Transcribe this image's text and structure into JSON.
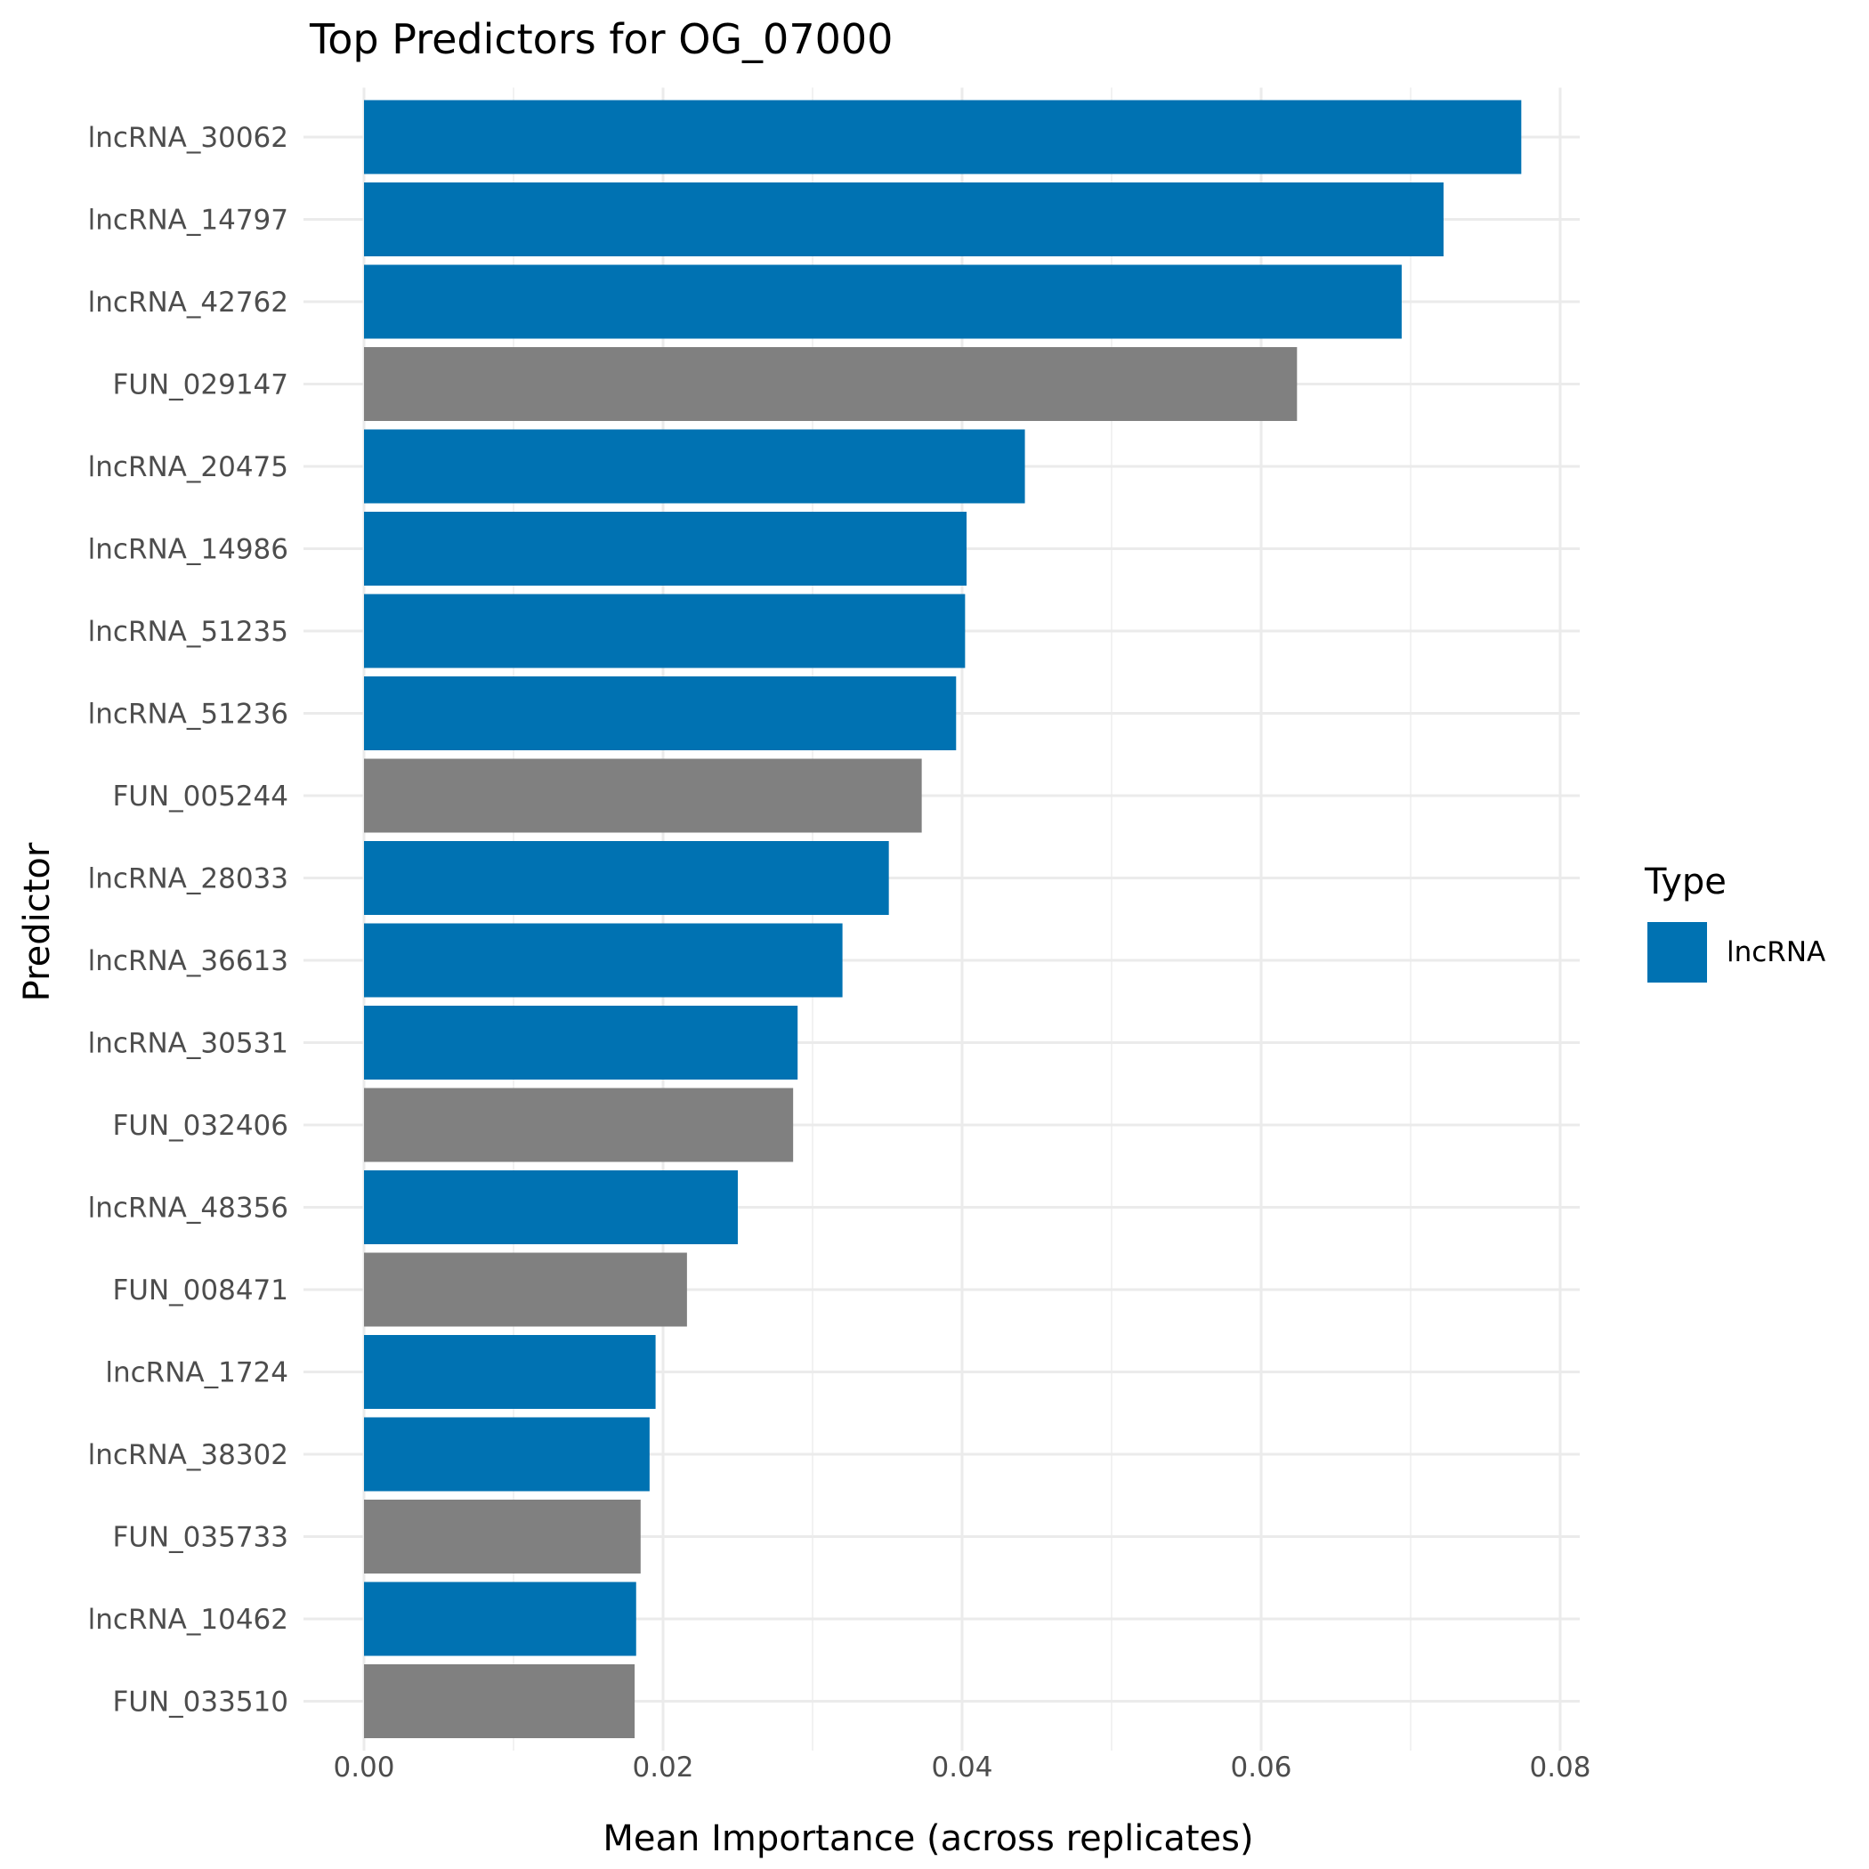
{
  "chart_data": {
    "type": "bar",
    "orientation": "horizontal",
    "title": "Top Predictors for OG_07000",
    "xlabel": "Mean Importance (across replicates)",
    "ylabel": "Predictor",
    "xlim": [
      0,
      0.08
    ],
    "x_ticks": [
      "0.00",
      "0.02",
      "0.04",
      "0.06",
      "0.08"
    ],
    "grid": true,
    "categories": [
      "lncRNA_30062",
      "lncRNA_14797",
      "lncRNA_42762",
      "FUN_029147",
      "lncRNA_20475",
      "lncRNA_14986",
      "lncRNA_51235",
      "lncRNA_51236",
      "FUN_005244",
      "lncRNA_28033",
      "lncRNA_36613",
      "lncRNA_30531",
      "FUN_032406",
      "lncRNA_48356",
      "FUN_008471",
      "lncRNA_1724",
      "lncRNA_38302",
      "FUN_035733",
      "lncRNA_10462",
      "FUN_033510"
    ],
    "values": [
      0.0774,
      0.0722,
      0.0694,
      0.0624,
      0.0442,
      0.0403,
      0.0402,
      0.0396,
      0.0373,
      0.0351,
      0.032,
      0.029,
      0.0287,
      0.025,
      0.0216,
      0.0195,
      0.0191,
      0.0185,
      0.0182,
      0.0181
    ],
    "types": [
      "lncRNA",
      "lncRNA",
      "lncRNA",
      "FUN",
      "lncRNA",
      "lncRNA",
      "lncRNA",
      "lncRNA",
      "FUN",
      "lncRNA",
      "lncRNA",
      "lncRNA",
      "FUN",
      "lncRNA",
      "FUN",
      "lncRNA",
      "lncRNA",
      "FUN",
      "lncRNA",
      "FUN"
    ],
    "colors": {
      "lncRNA": "#0072b2",
      "FUN": "#808080"
    },
    "legend": {
      "title": "Type",
      "position": "right",
      "entries": [
        {
          "label": "lncRNA",
          "color": "#0072b2"
        }
      ]
    }
  }
}
